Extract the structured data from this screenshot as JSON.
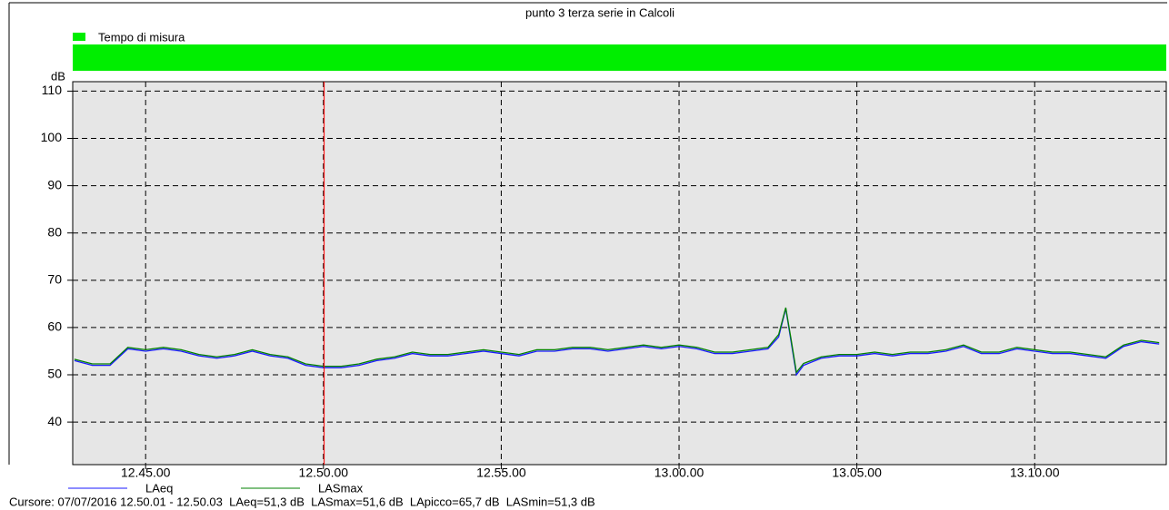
{
  "chart_data": {
    "type": "line",
    "title": "punto 3 terza serie in Calcoli",
    "measure_bar": {
      "label": "Tempo di misura",
      "color": "#00ee00"
    },
    "y_label": "dB",
    "x": [
      43,
      43.5,
      44,
      44.5,
      45,
      45.5,
      46,
      46.5,
      47,
      47.5,
      48,
      48.5,
      49,
      49.5,
      50,
      50.5,
      51,
      51.5,
      52,
      52.5,
      53,
      53.5,
      54,
      54.5,
      55,
      55.5,
      56,
      56.5,
      57,
      57.5,
      58,
      58.5,
      59,
      59.5,
      60,
      60.5,
      61,
      61.5,
      62,
      62.5,
      62.8,
      63,
      63.15,
      63.3,
      63.5,
      64,
      64.5,
      65,
      65.5,
      66,
      66.5,
      67,
      67.5,
      68,
      68.5,
      69,
      69.5,
      70,
      70.5,
      71,
      71.5,
      72,
      72.5,
      73,
      73.5
    ],
    "series": [
      {
        "name": "LAeq",
        "color": "#1a1aff",
        "values": [
          53,
          52,
          52,
          55.5,
          55,
          55.5,
          55,
          54,
          53.5,
          54,
          55,
          54,
          53.5,
          52,
          51.5,
          51.5,
          52,
          53,
          53.5,
          54.5,
          54,
          54,
          54.5,
          55,
          54.5,
          54,
          55,
          55,
          55.5,
          55.5,
          55,
          55.5,
          56,
          55.5,
          56,
          55.5,
          54.5,
          54.5,
          55,
          55.5,
          58,
          64,
          57,
          50,
          52,
          53.5,
          54,
          54,
          54.5,
          54,
          54.5,
          54.5,
          55,
          56,
          54.5,
          54.5,
          55.5,
          55,
          54.5,
          54.5,
          54,
          53.5,
          56,
          57,
          56.5
        ]
      },
      {
        "name": "LASmax",
        "color": "#008000",
        "values": [
          53.3,
          52.3,
          52.3,
          55.8,
          55.3,
          55.8,
          55.3,
          54.3,
          53.8,
          54.3,
          55.3,
          54.3,
          53.8,
          52.3,
          51.8,
          51.8,
          52.3,
          53.3,
          53.8,
          54.8,
          54.3,
          54.3,
          54.8,
          55.3,
          54.8,
          54.3,
          55.3,
          55.3,
          55.8,
          55.8,
          55.3,
          55.8,
          56.3,
          55.8,
          56.3,
          55.8,
          54.8,
          54.8,
          55.3,
          55.8,
          58.5,
          64.2,
          57.5,
          50.5,
          52.4,
          53.8,
          54.3,
          54.3,
          54.8,
          54.3,
          54.8,
          54.8,
          55.3,
          56.3,
          54.8,
          54.8,
          55.8,
          55.3,
          54.8,
          54.8,
          54.3,
          53.8,
          56.3,
          57.3,
          56.8
        ]
      }
    ],
    "xlim": [
      42.95,
      73.7
    ],
    "xticks": [
      {
        "value": 45,
        "label": "12.45.00"
      },
      {
        "value": 50,
        "label": "12.50.00"
      },
      {
        "value": 55,
        "label": "12.55.00"
      },
      {
        "value": 60,
        "label": "13.00.00"
      },
      {
        "value": 65,
        "label": "13.05.00"
      },
      {
        "value": 70,
        "label": "13.10.00"
      }
    ],
    "ylim": [
      31,
      112
    ],
    "yticks": [
      40,
      50,
      60,
      70,
      80,
      90,
      100,
      110
    ],
    "grid": true,
    "cursor_x": 50.02,
    "cursor_color": "#ff0000",
    "status": "Cursore: 07/07/2016 12.50.01 - 12.50.03  LAeq=51,3 dB  LASmax=51,6 dB  LApicco=65,7 dB  LASmin=51,3 dB"
  }
}
